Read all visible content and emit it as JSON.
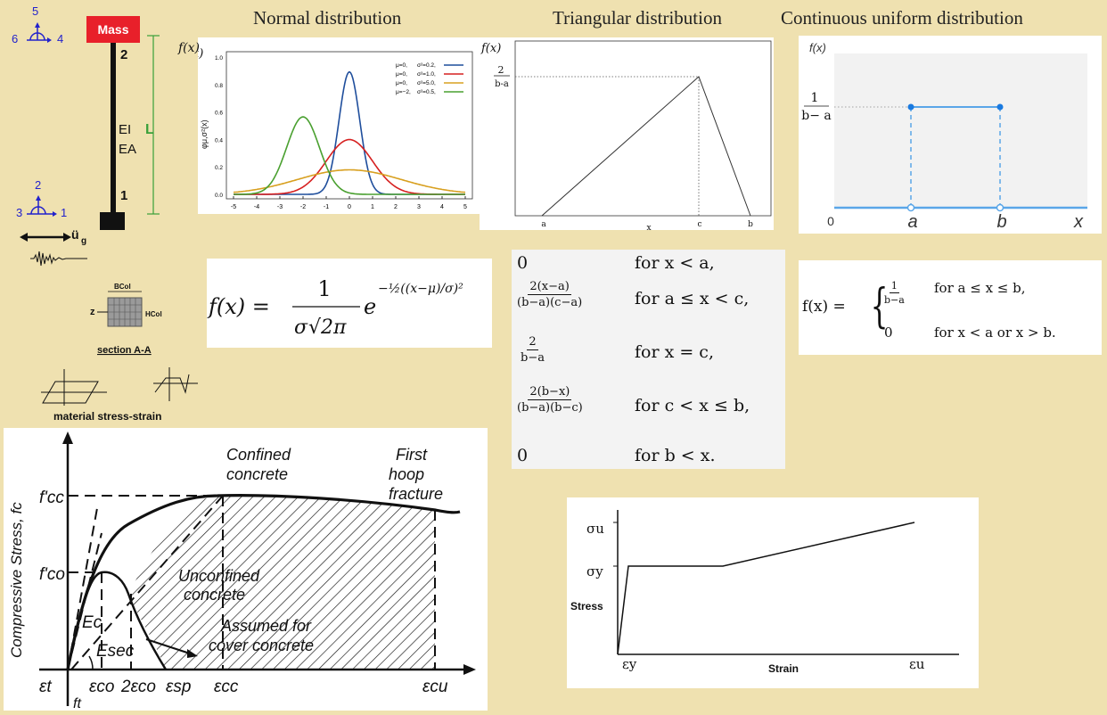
{
  "titles": {
    "normal": "Normal distribution",
    "triangular": "Triangular distribution",
    "uniform": "Continuous uniform distribution"
  },
  "structure": {
    "mass_label": "Mass",
    "node_top": "2",
    "node_bottom": "1",
    "ei": "EI",
    "ea": "EA",
    "length": "L",
    "ground_accel": "ü",
    "ground_accel_sub": "g",
    "dof_top": [
      "5",
      "6",
      "4"
    ],
    "dof_bottom": [
      "2",
      "3",
      "1"
    ],
    "section_bcol": "BCol",
    "section_hcol": "HCol",
    "section_z": "z",
    "section_label": "section A-A",
    "material_label": "material stress-strain"
  },
  "normal_chart": {
    "ylabel": "f(x)",
    "axis_label": "φμ,σ²(x)",
    "x_ticks": [
      "-5",
      "-4",
      "-3",
      "-2",
      "-1",
      "0",
      "1",
      "2",
      "3",
      "4",
      "5"
    ],
    "y_ticks": [
      "0.0",
      "0.2",
      "0.4",
      "0.6",
      "0.8",
      "1.0"
    ],
    "legend": [
      {
        "mu": "μ=0,",
        "s": "σ²=0.2,",
        "color": "#1f4e9c"
      },
      {
        "mu": "μ=0,",
        "s": "σ²=1.0,",
        "color": "#d62020"
      },
      {
        "mu": "μ=0,",
        "s": "σ²=5.0,",
        "color": "#d8a020"
      },
      {
        "mu": "μ=−2,",
        "s": "σ²=0.5,",
        "color": "#4aa030"
      }
    ]
  },
  "chart_data": [
    {
      "type": "line",
      "title": "Normal distribution",
      "xlim": [
        -5,
        5
      ],
      "ylim": [
        0,
        1.0
      ],
      "series": [
        {
          "name": "μ=0, σ²=0.2",
          "mu": 0,
          "var": 0.2
        },
        {
          "name": "μ=0, σ²=1.0",
          "mu": 0,
          "var": 1.0
        },
        {
          "name": "μ=0, σ²=5.0",
          "mu": 0,
          "var": 5.0
        },
        {
          "name": "μ=−2, σ²=0.5",
          "mu": -2,
          "var": 0.5
        }
      ]
    },
    {
      "type": "line",
      "title": "Triangular distribution",
      "x_ticks": [
        "a",
        "x",
        "c",
        "b"
      ],
      "points": [
        [
          "a",
          0
        ],
        [
          "c",
          "2/(b-a)"
        ],
        [
          "b",
          0
        ]
      ]
    },
    {
      "type": "line",
      "title": "Continuous uniform distribution",
      "x_ticks": [
        "0",
        "a",
        "b",
        "x"
      ],
      "points": [
        [
          "a",
          "1/(b−a)"
        ],
        [
          "b",
          "1/(b−a)"
        ]
      ]
    }
  ],
  "triangular": {
    "ylabel": "f(x)",
    "peak_num": "2",
    "peak_den": "b-a",
    "x_labels": [
      "a",
      "x",
      "c",
      "b"
    ]
  },
  "uniform": {
    "ylabel": "f(x)",
    "h_num": "1",
    "h_den": "b− a",
    "x_labels": [
      "0",
      "a",
      "b",
      "x"
    ]
  },
  "normal_formula": {
    "lhs": "f(x) =",
    "num": "1",
    "den_sigma": "σ",
    "den_root": "√2π",
    "e": "e",
    "exp": "−½((x−μ)/σ)²"
  },
  "triangular_pdf": {
    "rows": [
      {
        "val": "0",
        "cond": "for x < a,"
      },
      {
        "num": "2(x−a)",
        "den": "(b−a)(c−a)",
        "cond": "for a ≤ x < c,"
      },
      {
        "num": "2",
        "den": "b−a",
        "cond": "for x = c,"
      },
      {
        "num": "2(b−x)",
        "den": "(b−a)(b−c)",
        "cond": "for c < x ≤ b,"
      },
      {
        "val": "0",
        "cond": "for b < x."
      }
    ]
  },
  "uniform_pdf": {
    "lhs": "f(x) =",
    "row1_num": "1",
    "row1_den": "b−a",
    "row1_cond": "for a ≤ x ≤ b,",
    "row2_val": "0",
    "row2_cond": "for x < a  or  x > b."
  },
  "concrete": {
    "ylabel": "Compressive Stress, fc",
    "fcc": "f'cc",
    "fco": "f'co",
    "confined": "Confined concrete",
    "confined_1": "Confined",
    "confined_2": "concrete",
    "hoop_1": "First",
    "hoop_2": "hoop",
    "hoop_3": "fracture",
    "unconf_1": "Unconfined",
    "unconf_2": "concrete",
    "assumed_1": "Assumed for",
    "assumed_2": "cover concrete",
    "ec": "Ec",
    "esec": "Esec",
    "x_labels": [
      "εt",
      "εco",
      "2εco",
      "εsp",
      "εcc",
      "εcu"
    ],
    "ft": "ft"
  },
  "steel": {
    "sigma_u": "σu",
    "sigma_y": "σy",
    "stress": "Stress",
    "strain": "Strain",
    "eps_y": "εy",
    "eps_u": "εu"
  }
}
